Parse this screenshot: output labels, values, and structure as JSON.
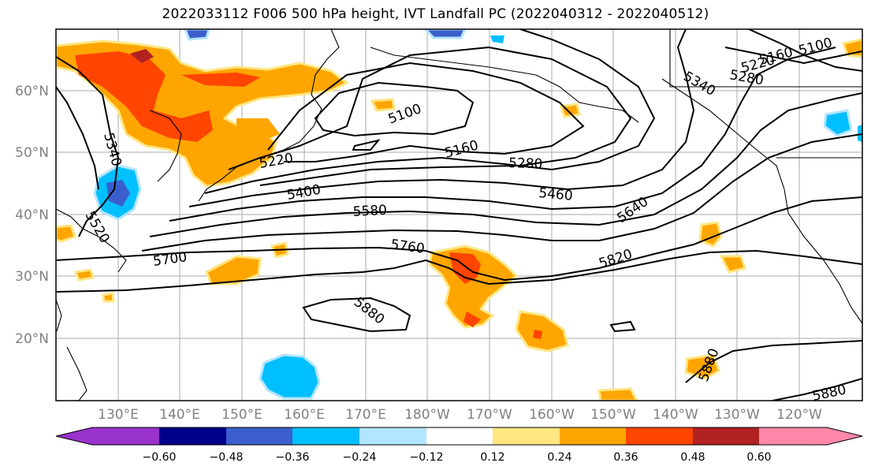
{
  "title": "2022033112 F006 500 hPa height, IVT Landfall PC (2022040312 - 2022040512)",
  "lat_labels": [
    "60°N",
    "50°N",
    "40°N",
    "30°N",
    "20°N"
  ],
  "lon_labels": [
    "130°E",
    "140°E",
    "150°E",
    "160°E",
    "170°E",
    "180°W",
    "170°W",
    "160°W",
    "150°W",
    "140°W",
    "130°W",
    "120°W"
  ],
  "contour_labels": [
    "5100",
    "5160",
    "5220",
    "5280",
    "5340",
    "5400",
    "5460",
    "5520",
    "5580",
    "5640",
    "5700",
    "5760",
    "5820",
    "5880"
  ],
  "colorbar": {
    "tick_labels": [
      "−0.60",
      "−0.48",
      "−0.36",
      "−0.24",
      "−0.12",
      "0.12",
      "0.24",
      "0.36",
      "0.48",
      "0.60"
    ],
    "colors": [
      "#9932cc",
      "#00008b",
      "#3a5fcd",
      "#00bfff",
      "#b2e5ff",
      "#ffffff",
      "#ffe680",
      "#ffa500",
      "#ff4500",
      "#b22222",
      "#ff88aa"
    ]
  },
  "colors": {
    "grid": "#aaaaaa",
    "contour": "#000000",
    "coast": "#000000"
  }
}
